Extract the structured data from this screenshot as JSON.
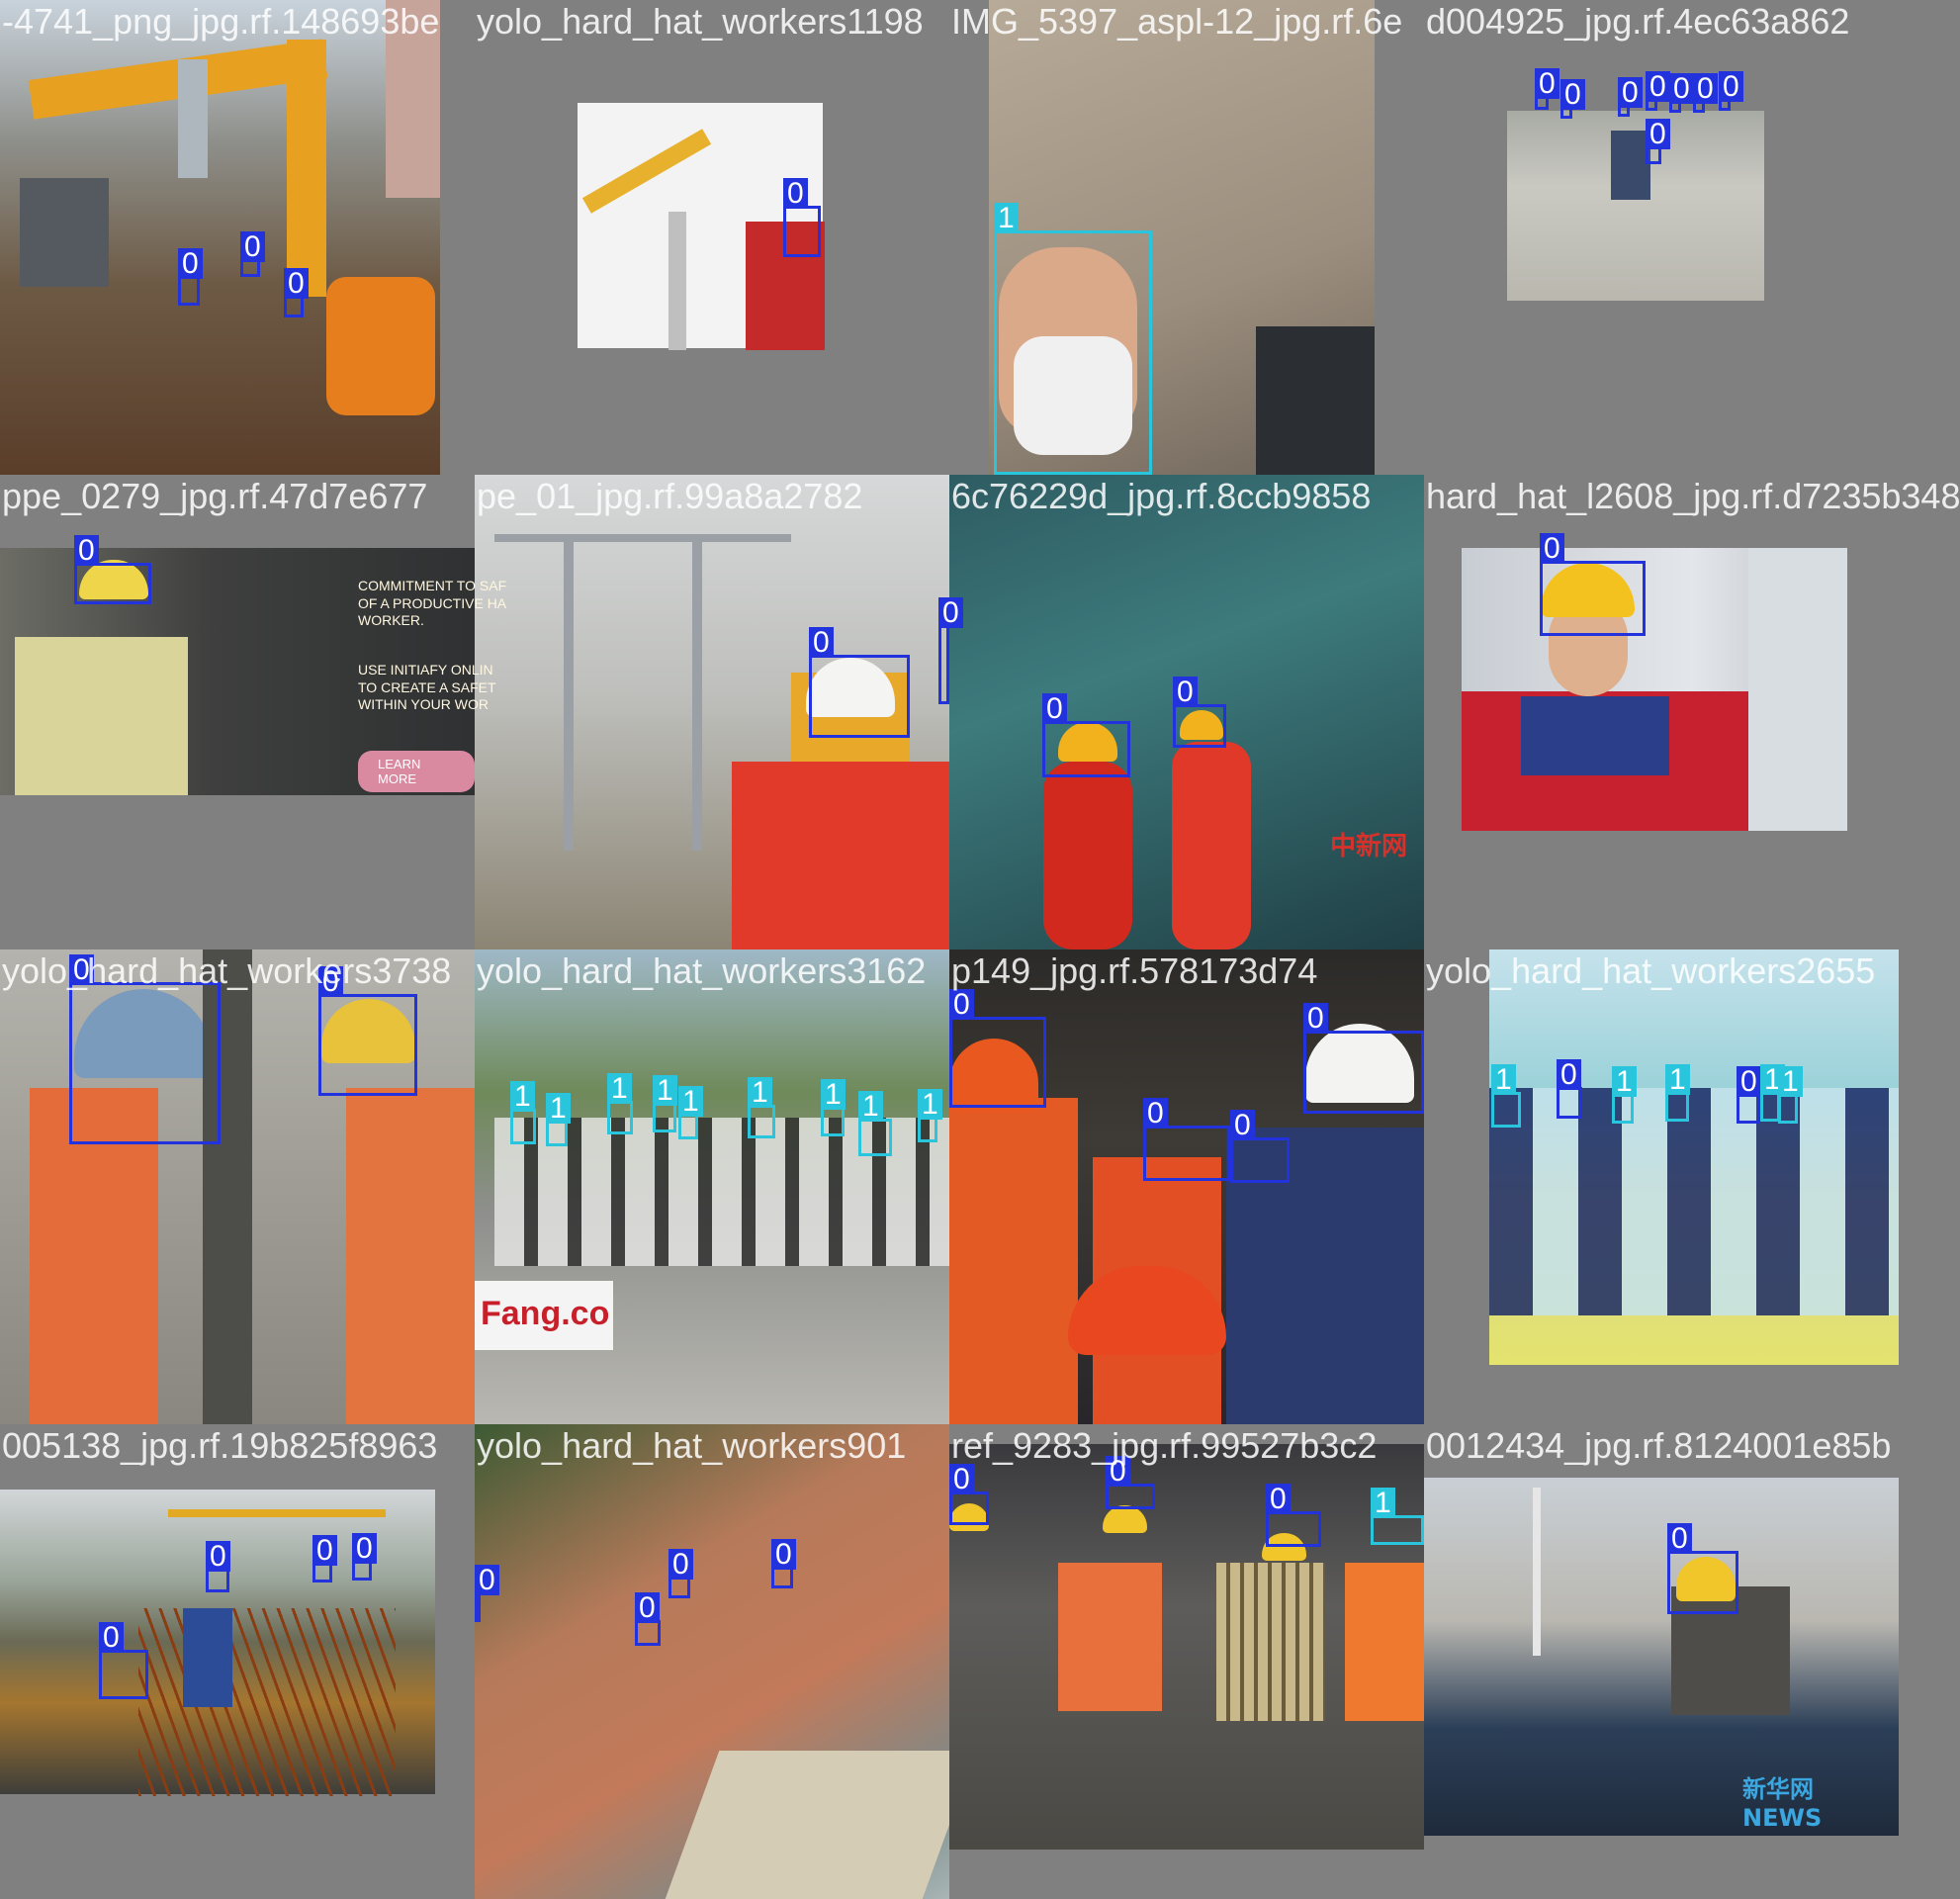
{
  "class_colors": {
    "0": "#2233dd",
    "1": "#29c5dd"
  },
  "tiles": [
    {
      "label": "-4741_png_jpg.rf.148693be",
      "detections": [
        "0",
        "0",
        "0"
      ]
    },
    {
      "label": "yolo_hard_hat_workers1198",
      "detections": [
        "0"
      ]
    },
    {
      "label": "IMG_5397_aspl-12_jpg.rf.6e",
      "detections": [
        "1"
      ]
    },
    {
      "label": "d004925_jpg.rf.4ec63a862",
      "detections": [
        "0",
        "0",
        "0",
        "0",
        "0",
        "0",
        "0",
        "0"
      ]
    },
    {
      "label": "ppe_0279_jpg.rf.47d7e677",
      "detections": [
        "0"
      ],
      "ad_text": {
        "lines1": "COMMITMENT TO SAF\nOF A PRODUCTIVE HA\nWORKER.",
        "lines2": "USE INITIAFY ONLIN\nTO CREATE A SAFET\nWITHIN YOUR WOR",
        "button": "LEARN MORE"
      }
    },
    {
      "label": "pe_01_jpg.rf.99a8a2782",
      "detections": [
        "0",
        "0"
      ]
    },
    {
      "label": "6c76229d_jpg.rf.8ccb9858",
      "detections": [
        "0",
        "0"
      ],
      "watermark": "中新网"
    },
    {
      "label": "hard_hat_l2608_jpg.rf.d7235b348",
      "detections": [
        "0"
      ]
    },
    {
      "label": "yolo_hard_hat_workers3738",
      "detections": [
        "0",
        "0"
      ]
    },
    {
      "label": "yolo_hard_hat_workers3162",
      "detections": [
        "1",
        "1",
        "1",
        "1",
        "1",
        "1",
        "1",
        "1",
        "1"
      ],
      "sign": "Fang.co"
    },
    {
      "label": "p149_jpg.rf.578173d74",
      "detections": [
        "0",
        "0",
        "0",
        "0"
      ]
    },
    {
      "label": "yolo_hard_hat_workers2655",
      "detections": [
        "1",
        "0",
        "1",
        "1",
        "0",
        "1",
        "1"
      ]
    },
    {
      "label": "005138_jpg.rf.19b825f8963",
      "detections": [
        "0",
        "0",
        "0",
        "0"
      ]
    },
    {
      "label": "yolo_hard_hat_workers901",
      "detections": [
        "0",
        "0",
        "0",
        "0"
      ]
    },
    {
      "label": "ref_9283_jpg.rf.99527b3c2",
      "detections": [
        "0",
        "0",
        "0",
        "1"
      ]
    },
    {
      "label": "0012434_jpg.rf.8124001e85b",
      "detections": [
        "0"
      ],
      "watermark": "新华网 NEWS"
    }
  ]
}
